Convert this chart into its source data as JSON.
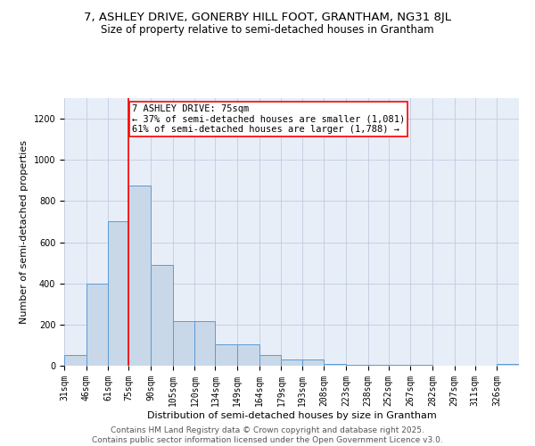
{
  "title1": "7, ASHLEY DRIVE, GONERBY HILL FOOT, GRANTHAM, NG31 8JL",
  "title2": "Size of property relative to semi-detached houses in Grantham",
  "xlabel": "Distribution of semi-detached houses by size in Grantham",
  "ylabel": "Number of semi-detached properties",
  "bin_labels": [
    "31sqm",
    "46sqm",
    "61sqm",
    "75sqm",
    "90sqm",
    "105sqm",
    "120sqm",
    "134sqm",
    "149sqm",
    "164sqm",
    "179sqm",
    "193sqm",
    "208sqm",
    "223sqm",
    "238sqm",
    "252sqm",
    "267sqm",
    "282sqm",
    "297sqm",
    "311sqm",
    "326sqm"
  ],
  "bin_edges": [
    31,
    46,
    61,
    75,
    90,
    105,
    120,
    134,
    149,
    164,
    179,
    193,
    208,
    223,
    238,
    252,
    267,
    282,
    297,
    311,
    326
  ],
  "bar_heights": [
    50,
    400,
    700,
    875,
    490,
    215,
    215,
    105,
    105,
    50,
    30,
    30,
    10,
    5,
    5,
    5,
    5,
    2,
    2,
    2,
    10
  ],
  "bar_color": "#c8d8e8",
  "bar_edgecolor": "#5b9bd5",
  "property_line_x": 75,
  "annotation_text1": "7 ASHLEY DRIVE: 75sqm",
  "annotation_text2": "← 37% of semi-detached houses are smaller (1,081)",
  "annotation_text3": "61% of semi-detached houses are larger (1,788) →",
  "annotation_box_color": "white",
  "annotation_box_edgecolor": "red",
  "red_line_color": "red",
  "ylim": [
    0,
    1300
  ],
  "yticks": [
    0,
    200,
    400,
    600,
    800,
    1000,
    1200
  ],
  "grid_color": "#c0cce0",
  "bg_color": "#e8eef8",
  "footer_text": "Contains HM Land Registry data © Crown copyright and database right 2025.\nContains public sector information licensed under the Open Government Licence v3.0.",
  "title1_fontsize": 9.5,
  "title2_fontsize": 8.5,
  "xlabel_fontsize": 8,
  "ylabel_fontsize": 8,
  "tick_fontsize": 7,
  "annotation_fontsize": 7.5,
  "footer_fontsize": 6.5
}
